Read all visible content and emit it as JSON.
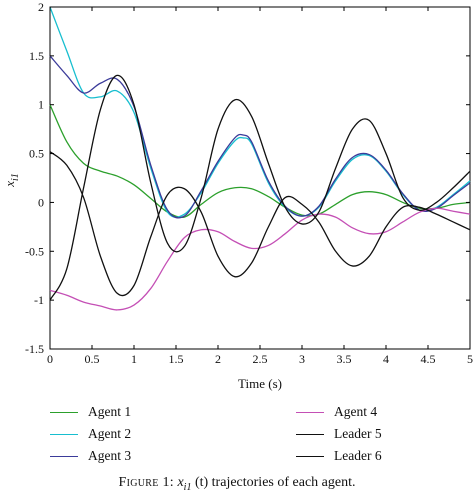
{
  "chart_data": {
    "type": "line",
    "xlabel": "Time (s)",
    "ylabel_main": "x",
    "ylabel_sub": "i1",
    "xlim": [
      0,
      5
    ],
    "ylim": [
      -1.5,
      2
    ],
    "xticks": [
      "0",
      "0.5",
      "1",
      "1.5",
      "2",
      "2.5",
      "3",
      "3.5",
      "4",
      "4.5",
      "5"
    ],
    "yticks": [
      "2",
      "1.5",
      "1",
      "0.5",
      "0",
      "-0.5",
      "-1",
      "-1.5"
    ],
    "grid": false,
    "series": [
      {
        "name": "Agent 1",
        "color": "#2ca02c",
        "x": [
          0,
          0.2,
          0.4,
          0.6,
          0.8,
          1.0,
          1.2,
          1.4,
          1.6,
          1.8,
          2.0,
          2.2,
          2.4,
          2.6,
          2.8,
          3.0,
          3.2,
          3.4,
          3.6,
          3.8,
          4.0,
          4.2,
          4.4,
          4.6,
          4.8,
          5.0
        ],
        "y": [
          1.0,
          0.62,
          0.4,
          0.32,
          0.27,
          0.18,
          0.04,
          -0.1,
          -0.15,
          -0.02,
          0.1,
          0.15,
          0.14,
          0.06,
          -0.05,
          -0.13,
          -0.12,
          -0.02,
          0.08,
          0.11,
          0.08,
          0.0,
          -0.06,
          -0.06,
          -0.02,
          0.0
        ]
      },
      {
        "name": "Agent 2",
        "color": "#17becf",
        "x": [
          0,
          0.2,
          0.4,
          0.6,
          0.8,
          1.0,
          1.2,
          1.4,
          1.6,
          1.8,
          2.0,
          2.2,
          2.3,
          2.4,
          2.6,
          2.8,
          3.0,
          3.2,
          3.4,
          3.6,
          3.8,
          4.0,
          4.2,
          4.4,
          4.6,
          4.8,
          5.0
        ],
        "y": [
          2.0,
          1.55,
          1.12,
          1.08,
          1.14,
          0.92,
          0.35,
          -0.1,
          -0.12,
          0.1,
          0.4,
          0.63,
          0.66,
          0.6,
          0.2,
          -0.05,
          -0.14,
          -0.05,
          0.22,
          0.44,
          0.48,
          0.32,
          0.08,
          -0.08,
          -0.05,
          0.08,
          0.22
        ]
      },
      {
        "name": "Agent 3",
        "color": "#3b3b9a",
        "x": [
          0,
          0.2,
          0.4,
          0.6,
          0.8,
          1.0,
          1.2,
          1.4,
          1.6,
          1.8,
          2.0,
          2.2,
          2.3,
          2.4,
          2.6,
          2.8,
          3.0,
          3.2,
          3.4,
          3.6,
          3.8,
          4.0,
          4.2,
          4.4,
          4.6,
          4.8,
          5.0
        ],
        "y": [
          1.5,
          1.3,
          1.12,
          1.22,
          1.26,
          0.98,
          0.38,
          -0.08,
          -0.14,
          0.12,
          0.42,
          0.66,
          0.69,
          0.62,
          0.22,
          -0.04,
          -0.14,
          -0.04,
          0.24,
          0.46,
          0.49,
          0.33,
          0.09,
          -0.08,
          -0.06,
          0.07,
          0.2
        ]
      },
      {
        "name": "Agent 4",
        "color": "#c44fb5",
        "x": [
          0,
          0.2,
          0.4,
          0.6,
          0.8,
          1.0,
          1.2,
          1.4,
          1.6,
          1.8,
          2.0,
          2.2,
          2.4,
          2.6,
          2.8,
          3.0,
          3.2,
          3.4,
          3.6,
          3.8,
          4.0,
          4.2,
          4.4,
          4.6,
          4.8,
          5.0
        ],
        "y": [
          -0.9,
          -0.95,
          -1.02,
          -1.06,
          -1.1,
          -1.05,
          -0.88,
          -0.6,
          -0.36,
          -0.28,
          -0.3,
          -0.4,
          -0.47,
          -0.44,
          -0.32,
          -0.18,
          -0.12,
          -0.15,
          -0.26,
          -0.32,
          -0.3,
          -0.2,
          -0.1,
          -0.06,
          -0.09,
          -0.12
        ]
      },
      {
        "name": "Leader 5",
        "color": "#111111",
        "x": [
          0,
          0.2,
          0.4,
          0.6,
          0.8,
          1.0,
          1.2,
          1.4,
          1.6,
          1.8,
          2.0,
          2.2,
          2.4,
          2.6,
          2.8,
          3.0,
          3.2,
          3.4,
          3.6,
          3.8,
          4.0,
          4.2,
          4.4,
          4.6,
          4.8,
          5.0
        ],
        "y": [
          -1.0,
          -0.68,
          0.15,
          0.95,
          1.3,
          1.0,
          0.2,
          -0.42,
          -0.45,
          0.05,
          0.75,
          1.05,
          0.88,
          0.4,
          -0.05,
          -0.22,
          -0.1,
          0.35,
          0.75,
          0.84,
          0.5,
          0.05,
          -0.08,
          0.0,
          0.15,
          0.32
        ]
      },
      {
        "name": "Leader 6",
        "color": "#111111",
        "x": [
          0,
          0.2,
          0.4,
          0.6,
          0.8,
          1.0,
          1.2,
          1.4,
          1.6,
          1.8,
          2.0,
          2.2,
          2.4,
          2.6,
          2.8,
          3.0,
          3.2,
          3.4,
          3.6,
          3.8,
          4.0,
          4.2,
          4.4,
          4.6,
          4.8,
          5.0
        ],
        "y": [
          0.52,
          0.38,
          0.05,
          -0.55,
          -0.93,
          -0.85,
          -0.35,
          0.08,
          0.14,
          -0.1,
          -0.55,
          -0.76,
          -0.62,
          -0.25,
          0.05,
          -0.02,
          -0.2,
          -0.5,
          -0.65,
          -0.55,
          -0.25,
          -0.05,
          -0.05,
          -0.12,
          -0.2,
          -0.28
        ]
      }
    ]
  },
  "legend": {
    "entries": [
      "Agent 1",
      "Agent 2",
      "Agent 3",
      "Agent 4",
      "Leader 5",
      "Leader 6"
    ],
    "colors": [
      "#2ca02c",
      "#17becf",
      "#3b3b9a",
      "#c44fb5",
      "#111111",
      "#111111"
    ]
  },
  "caption": {
    "figure_label": "Figure 1:",
    "symbol_main": "x",
    "symbol_sub": "i1",
    "argument": "(t)",
    "rest": "trajectories of each agent."
  }
}
